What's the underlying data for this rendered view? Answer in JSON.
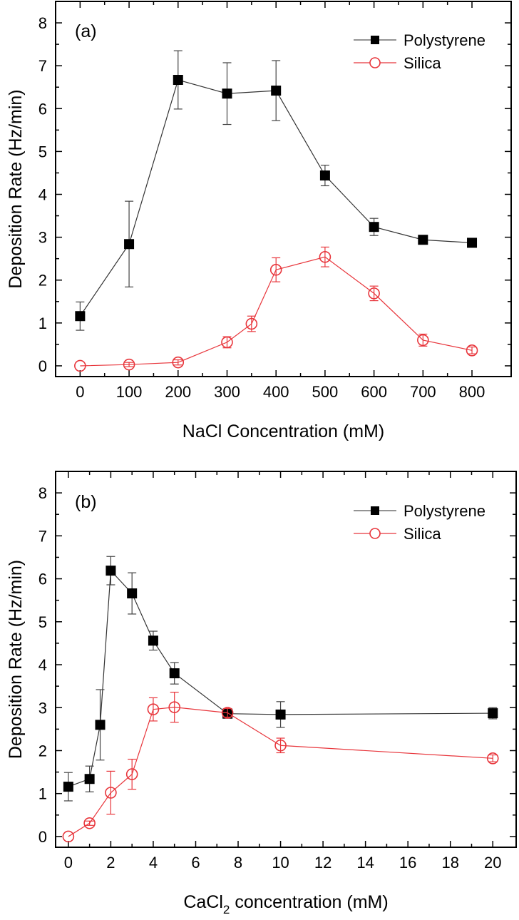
{
  "chart_data": [
    {
      "type": "line",
      "panel_label": "(a)",
      "title": "",
      "xlabel": "NaCl Concentration (mM)",
      "xlabel_sub": "",
      "xlabel_rest": "",
      "ylabel": "Deposition Rate (Hz/min)",
      "xlim": [
        -50,
        880
      ],
      "ylim": [
        -0.25,
        8.5
      ],
      "x_ticks": [
        0,
        100,
        200,
        300,
        400,
        500,
        600,
        700,
        800
      ],
      "x_tick_labels": [
        "0",
        "100",
        "200",
        "300",
        "400",
        "500",
        "600",
        "700",
        "800"
      ],
      "x_minor_ticks": [
        50,
        150,
        250,
        350,
        450,
        550,
        650,
        750
      ],
      "y_ticks": [
        0,
        1,
        2,
        3,
        4,
        5,
        6,
        7,
        8
      ],
      "y_tick_labels": [
        "0",
        "1",
        "2",
        "3",
        "4",
        "5",
        "6",
        "7",
        "8"
      ],
      "y_minor_ticks": [
        0.5,
        1.5,
        2.5,
        3.5,
        4.5,
        5.5,
        6.5,
        7.5
      ],
      "grid": false,
      "legend_position": "top-right",
      "series": [
        {
          "name": "Polystyrene",
          "color": "#000000",
          "marker": "filled-square",
          "x": [
            0,
            100,
            200,
            300,
            400,
            500,
            600,
            700,
            800
          ],
          "values": [
            1.16,
            2.84,
            6.67,
            6.35,
            6.42,
            4.44,
            3.24,
            2.94,
            2.87
          ],
          "errors": [
            0.33,
            1.0,
            0.68,
            0.72,
            0.7,
            0.24,
            0.2,
            0.08,
            0.05
          ]
        },
        {
          "name": "Silica",
          "color": "#e8363c",
          "marker": "open-circle",
          "x": [
            0,
            100,
            200,
            300,
            350,
            400,
            500,
            600,
            700,
            800
          ],
          "values": [
            0.0,
            0.03,
            0.08,
            0.55,
            0.98,
            2.24,
            2.54,
            1.69,
            0.6,
            0.36
          ],
          "errors": [
            0.0,
            0.05,
            0.06,
            0.13,
            0.18,
            0.28,
            0.23,
            0.17,
            0.14,
            0.08
          ]
        }
      ]
    },
    {
      "type": "line",
      "panel_label": "(b)",
      "title": "",
      "xlabel": "CaCl",
      "xlabel_sub": "2",
      "xlabel_rest": " concentration (mM)",
      "ylabel": "Deposition Rate (Hz/min)",
      "xlim": [
        -0.6,
        21.1
      ],
      "ylim": [
        -0.25,
        8.5
      ],
      "x_ticks": [
        0,
        2,
        4,
        6,
        8,
        10,
        12,
        14,
        16,
        18,
        20
      ],
      "x_tick_labels": [
        "0",
        "2",
        "4",
        "6",
        "8",
        "10",
        "12",
        "14",
        "16",
        "18",
        "20"
      ],
      "x_minor_ticks": [
        1,
        3,
        5,
        7,
        9,
        11,
        13,
        15,
        17,
        19
      ],
      "y_ticks": [
        0,
        1,
        2,
        3,
        4,
        5,
        6,
        7,
        8
      ],
      "y_tick_labels": [
        "0",
        "1",
        "2",
        "3",
        "4",
        "5",
        "6",
        "7",
        "8"
      ],
      "y_minor_ticks": [
        0.5,
        1.5,
        2.5,
        3.5,
        4.5,
        5.5,
        6.5,
        7.5
      ],
      "grid": false,
      "legend_position": "top-right",
      "series": [
        {
          "name": "Polystyrene",
          "color": "#000000",
          "marker": "filled-square",
          "x": [
            0,
            1,
            1.5,
            2,
            3,
            4,
            5,
            7.5,
            10,
            20
          ],
          "values": [
            1.16,
            1.34,
            2.6,
            6.19,
            5.66,
            4.56,
            3.8,
            2.86,
            2.84,
            2.87
          ],
          "errors": [
            0.33,
            0.3,
            0.82,
            0.33,
            0.48,
            0.22,
            0.25,
            0.1,
            0.3,
            0.13
          ]
        },
        {
          "name": "Silica",
          "color": "#e8363c",
          "marker": "open-circle",
          "x": [
            0,
            1,
            2,
            3,
            4,
            5,
            7.5,
            10,
            20
          ],
          "values": [
            0.0,
            0.31,
            1.02,
            1.45,
            2.96,
            3.01,
            2.88,
            2.12,
            1.82
          ],
          "errors": [
            0.0,
            0.05,
            0.5,
            0.35,
            0.27,
            0.35,
            0.1,
            0.17,
            0.08
          ]
        }
      ]
    }
  ]
}
